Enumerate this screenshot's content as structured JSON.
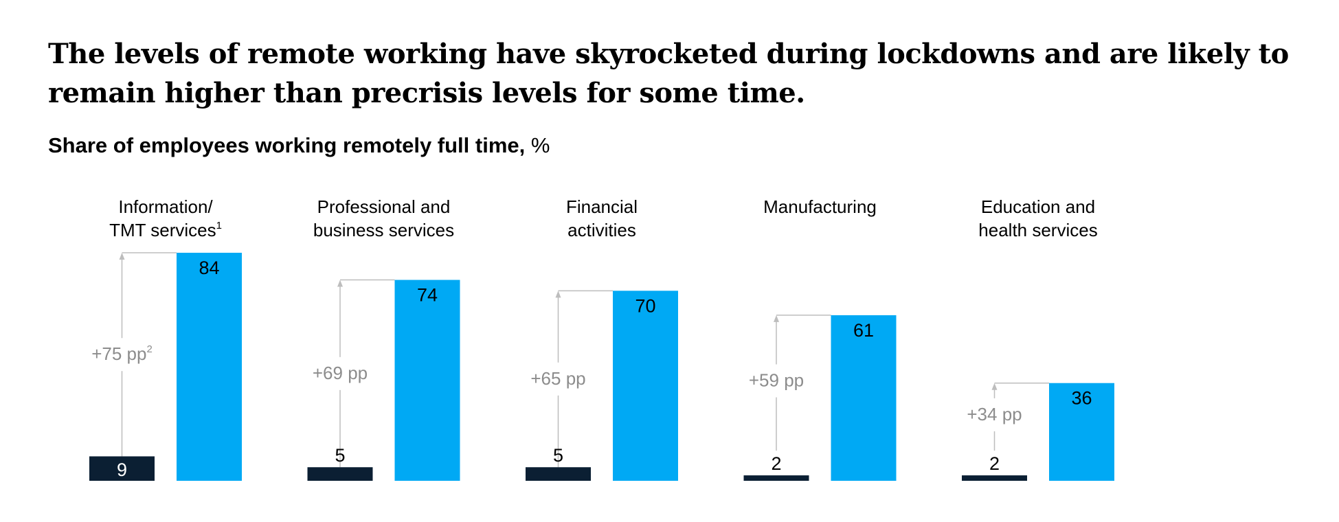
{
  "headline": "The levels of remote working have skyrocketed during lockdowns and are likely to remain higher than precrisis levels for some time.",
  "subtitle_bold": "Share of employees working remotely full time,",
  "subtitle_unit": " %",
  "colors": {
    "before": "#0b1f33",
    "after": "#00a9f4",
    "arrow": "#bdbdbd",
    "diff_text": "#8c8c8c"
  },
  "chart_data": {
    "type": "bar",
    "categories": [
      {
        "line1": "Information/",
        "line2": "TMT services",
        "sup": "1"
      },
      {
        "line1": "Professional and",
        "line2": "business services",
        "sup": ""
      },
      {
        "line1": "Financial",
        "line2": "activities",
        "sup": ""
      },
      {
        "line1": "Manufacturing",
        "line2": "",
        "sup": ""
      },
      {
        "line1": "Education and",
        "line2": "health services",
        "sup": ""
      }
    ],
    "before": [
      9,
      5,
      5,
      2,
      2
    ],
    "after": [
      84,
      74,
      70,
      61,
      36
    ],
    "differences": [
      {
        "text": "+75 pp",
        "sup": "2"
      },
      {
        "text": "+69 pp",
        "sup": ""
      },
      {
        "text": "+65 pp",
        "sup": ""
      },
      {
        "text": "+59 pp",
        "sup": ""
      },
      {
        "text": "+34 pp",
        "sup": ""
      }
    ],
    "ylim": [
      0,
      84
    ]
  }
}
